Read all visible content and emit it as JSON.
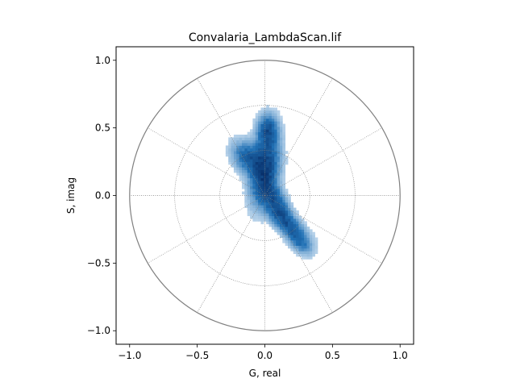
{
  "chart_data": {
    "type": "heatmap",
    "title": "Convalaria_LambdaScan.lif",
    "xlabel": "G, real",
    "ylabel": "S, imag",
    "xlim": [
      -1.1,
      1.1
    ],
    "ylim": [
      -1.1,
      1.1
    ],
    "x_ticks": [
      -1.0,
      -0.5,
      0.0,
      0.5,
      1.0
    ],
    "x_tick_labels": [
      "−1.0",
      "−0.5",
      "0.0",
      "0.5",
      "1.0"
    ],
    "y_ticks": [
      -1.0,
      -0.5,
      0.0,
      0.5,
      1.0
    ],
    "y_tick_labels": [
      "−1.0",
      "−0.5",
      "0.0",
      "0.5",
      "1.0"
    ],
    "unit_circle_radius": 1.0,
    "polar_grid_radii": [
      0.333,
      0.667
    ],
    "polar_grid_angles_deg": [
      0,
      30,
      60,
      90,
      120,
      150,
      180,
      210,
      240,
      270,
      300,
      330
    ],
    "grid": true,
    "colormap": "Blues",
    "density_clusters": [
      {
        "g": 0.02,
        "s": 0.48,
        "sg": 0.05,
        "ss": 0.08,
        "rho": 0.0,
        "w": 0.8
      },
      {
        "g": -0.12,
        "s": 0.28,
        "sg": 0.08,
        "ss": 0.08,
        "rho": -0.3,
        "w": 0.7
      },
      {
        "g": 0.0,
        "s": 0.18,
        "sg": 0.07,
        "ss": 0.16,
        "rho": 0.3,
        "w": 1.0
      },
      {
        "g": 0.08,
        "s": -0.05,
        "sg": 0.07,
        "ss": 0.1,
        "rho": -0.6,
        "w": 0.8
      },
      {
        "g": 0.18,
        "s": -0.22,
        "sg": 0.09,
        "ss": 0.08,
        "rho": -0.7,
        "w": 0.65
      },
      {
        "g": 0.26,
        "s": -0.35,
        "sg": 0.06,
        "ss": 0.06,
        "rho": -0.5,
        "w": 0.45
      }
    ],
    "colors": {
      "circle": "#808080",
      "grid": "#808080",
      "density_low": "#deebf7",
      "density_mid": "#2171b5",
      "density_high": "#08306b"
    }
  }
}
